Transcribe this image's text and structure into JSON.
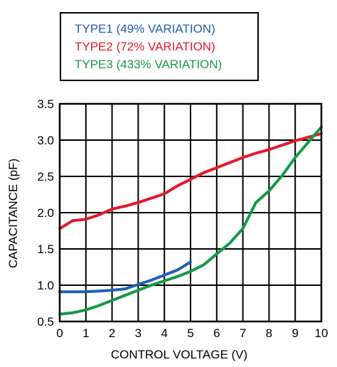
{
  "chart_data": {
    "type": "line",
    "xlabel": "CONTROL VOLTAGE (V)",
    "ylabel": "CAPACITANCE (pF)",
    "xlim": [
      0,
      10
    ],
    "ylim": [
      0.5,
      3.5
    ],
    "x_ticks": [
      "0",
      "1",
      "2",
      "3",
      "4",
      "5",
      "6",
      "7",
      "8",
      "9",
      "10"
    ],
    "y_ticks": [
      "0.5",
      "1.0",
      "1.5",
      "2.0",
      "2.5",
      "3.0",
      "3.5"
    ],
    "grid": true,
    "legend_position": "top-left",
    "series": [
      {
        "name": "TYPE1 (49% VARIATION)",
        "color": "#1f5fb3",
        "x": [
          0,
          0.5,
          1,
          1.5,
          2,
          2.5,
          3,
          3.5,
          4,
          4.5,
          5
        ],
        "y": [
          0.91,
          0.91,
          0.91,
          0.92,
          0.93,
          0.95,
          1.01,
          1.07,
          1.14,
          1.21,
          1.32
        ]
      },
      {
        "name": "TYPE2 (72% VARIATION)",
        "color": "#e3192c",
        "x": [
          0,
          0.5,
          1,
          1.5,
          2,
          2.5,
          3,
          3.5,
          4,
          4.5,
          5,
          5.5,
          6,
          6.5,
          7,
          7.5,
          8,
          8.5,
          9,
          9.5,
          10
        ],
        "y": [
          1.78,
          1.89,
          1.91,
          1.97,
          2.05,
          2.09,
          2.14,
          2.2,
          2.26,
          2.37,
          2.46,
          2.55,
          2.62,
          2.69,
          2.76,
          2.82,
          2.87,
          2.93,
          2.99,
          3.04,
          3.09
        ]
      },
      {
        "name": "TYPE3 (433% VARIATION)",
        "color": "#139a48",
        "x": [
          0,
          0.5,
          1,
          1.5,
          2,
          2.5,
          3,
          3.5,
          4,
          4.5,
          5,
          5.5,
          6,
          6.5,
          7,
          7.5,
          8,
          8.5,
          9,
          9.5,
          10
        ],
        "y": [
          0.6,
          0.62,
          0.66,
          0.72,
          0.79,
          0.86,
          0.93,
          1.0,
          1.06,
          1.12,
          1.19,
          1.28,
          1.43,
          1.58,
          1.78,
          2.14,
          2.3,
          2.51,
          2.76,
          2.97,
          3.18
        ]
      }
    ]
  }
}
